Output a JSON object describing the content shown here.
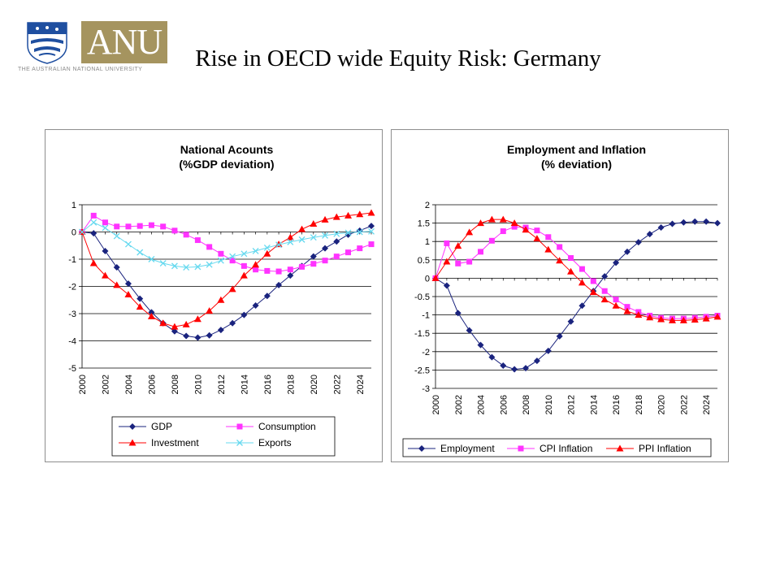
{
  "header": {
    "logo_text": "ANU",
    "logo_subtext": "THE AUSTRALIAN NATIONAL UNIVERSITY",
    "title": "Rise in OECD wide Equity Risk: Germany"
  },
  "colors": {
    "gdp": "#1a237e",
    "consumption": "#ff33ff",
    "investment": "#ff0000",
    "exports": "#66d9ef",
    "employment": "#1a237e",
    "cpi_inflation": "#ff33ff",
    "ppi_inflation": "#ff0000",
    "logo_gold": "#a5945f",
    "crest_blue": "#1f4fa0"
  },
  "chart_data": [
    {
      "type": "line",
      "title": "National Acounts",
      "subtitle": "(%GDP deviation)",
      "xlabel": "",
      "ylabel": "",
      "x": [
        2000,
        2001,
        2002,
        2003,
        2004,
        2005,
        2006,
        2007,
        2008,
        2009,
        2010,
        2011,
        2012,
        2013,
        2014,
        2015,
        2016,
        2017,
        2018,
        2019,
        2020,
        2021,
        2022,
        2023,
        2024,
        2025
      ],
      "xticks": [
        "2000",
        "2002",
        "2004",
        "2006",
        "2008",
        "2010",
        "2012",
        "2014",
        "2016",
        "2018",
        "2020",
        "2022",
        "2024"
      ],
      "ylim": [
        -5,
        1
      ],
      "yticks": [
        "1",
        "0",
        "-1",
        "-2",
        "-3",
        "-4",
        "-5"
      ],
      "grid": true,
      "legend_position": "bottom",
      "series": [
        {
          "name": "GDP",
          "marker": "diamond",
          "color_key": "gdp",
          "values": [
            0,
            -0.05,
            -0.7,
            -1.3,
            -1.9,
            -2.45,
            -2.95,
            -3.35,
            -3.65,
            -3.82,
            -3.88,
            -3.8,
            -3.6,
            -3.35,
            -3.05,
            -2.7,
            -2.35,
            -1.95,
            -1.6,
            -1.25,
            -0.9,
            -0.6,
            -0.35,
            -0.1,
            0.05,
            0.22
          ]
        },
        {
          "name": "Consumption",
          "marker": "square",
          "color_key": "consumption",
          "values": [
            0,
            0.6,
            0.35,
            0.2,
            0.2,
            0.22,
            0.25,
            0.2,
            0.05,
            -0.1,
            -0.3,
            -0.55,
            -0.8,
            -1.05,
            -1.25,
            -1.38,
            -1.43,
            -1.45,
            -1.38,
            -1.28,
            -1.17,
            -1.05,
            -0.9,
            -0.75,
            -0.6,
            -0.45
          ]
        },
        {
          "name": "Investment",
          "marker": "triangle",
          "color_key": "investment",
          "values": [
            0,
            -1.15,
            -1.6,
            -1.95,
            -2.3,
            -2.75,
            -3.1,
            -3.35,
            -3.48,
            -3.4,
            -3.2,
            -2.9,
            -2.5,
            -2.1,
            -1.6,
            -1.2,
            -0.8,
            -0.45,
            -0.2,
            0.1,
            0.3,
            0.45,
            0.55,
            0.6,
            0.65,
            0.7
          ]
        },
        {
          "name": "Exports",
          "marker": "x",
          "color_key": "exports",
          "values": [
            0,
            0.35,
            0.15,
            -0.15,
            -0.45,
            -0.75,
            -1.0,
            -1.15,
            -1.25,
            -1.3,
            -1.28,
            -1.2,
            -1.05,
            -0.9,
            -0.8,
            -0.7,
            -0.58,
            -0.47,
            -0.37,
            -0.28,
            -0.2,
            -0.13,
            -0.07,
            -0.03,
            0,
            0.02
          ]
        }
      ]
    },
    {
      "type": "line",
      "title": "Employment and Inflation",
      "subtitle": "(% deviation)",
      "xlabel": "",
      "ylabel": "",
      "x": [
        2000,
        2001,
        2002,
        2003,
        2004,
        2005,
        2006,
        2007,
        2008,
        2009,
        2010,
        2011,
        2012,
        2013,
        2014,
        2015,
        2016,
        2017,
        2018,
        2019,
        2020,
        2021,
        2022,
        2023,
        2024,
        2025
      ],
      "xticks": [
        "2000",
        "2002",
        "2004",
        "2006",
        "2008",
        "2010",
        "2012",
        "2014",
        "2016",
        "2018",
        "2020",
        "2022",
        "2024"
      ],
      "ylim": [
        -3,
        2
      ],
      "yticks": [
        "2",
        "1.5",
        "1",
        "0.5",
        "0",
        "-0.5",
        "-1",
        "-1.5",
        "-2",
        "-2.5",
        "-3"
      ],
      "grid": true,
      "legend_position": "bottom",
      "series": [
        {
          "name": "Employment",
          "marker": "diamond",
          "color_key": "employment",
          "values": [
            0,
            -0.2,
            -0.95,
            -1.42,
            -1.82,
            -2.15,
            -2.38,
            -2.48,
            -2.45,
            -2.25,
            -1.98,
            -1.58,
            -1.18,
            -0.75,
            -0.35,
            0.05,
            0.42,
            0.72,
            0.98,
            1.2,
            1.38,
            1.48,
            1.52,
            1.54,
            1.54,
            1.5
          ]
        },
        {
          "name": "CPI Inflation",
          "marker": "square",
          "color_key": "cpi_inflation",
          "values": [
            0,
            0.95,
            0.4,
            0.45,
            0.72,
            1.02,
            1.28,
            1.4,
            1.38,
            1.3,
            1.12,
            0.85,
            0.55,
            0.25,
            -0.08,
            -0.35,
            -0.58,
            -0.78,
            -0.92,
            -1.02,
            -1.08,
            -1.1,
            -1.1,
            -1.08,
            -1.05,
            -1.02
          ]
        },
        {
          "name": "PPI Inflation",
          "marker": "triangle",
          "color_key": "ppi_inflation",
          "values": [
            0,
            0.45,
            0.88,
            1.25,
            1.5,
            1.6,
            1.6,
            1.5,
            1.32,
            1.08,
            0.78,
            0.48,
            0.18,
            -0.12,
            -0.38,
            -0.58,
            -0.75,
            -0.9,
            -1.0,
            -1.07,
            -1.12,
            -1.15,
            -1.15,
            -1.13,
            -1.1,
            -1.05
          ]
        }
      ]
    }
  ]
}
